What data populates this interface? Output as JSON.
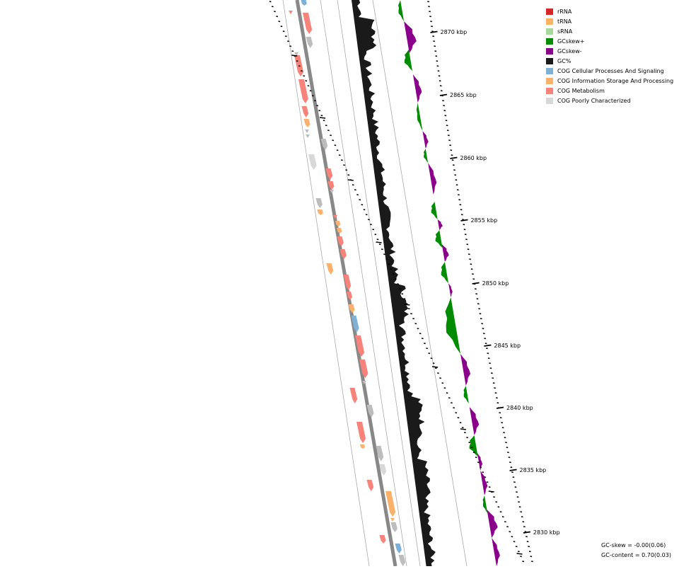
{
  "legend": [
    {
      "label": "rRNA",
      "color": "#d62728"
    },
    {
      "label": "tRNA",
      "color": "#fdb462"
    },
    {
      "label": "sRNA",
      "color": "#a6d99a"
    },
    {
      "label": "GCskew+",
      "color": "#008c00"
    },
    {
      "label": "GCskew-",
      "color": "#8b008b"
    },
    {
      "label": "GC%",
      "color": "#1a1a1a"
    },
    {
      "label": "COG Cellular Processes And Signaling",
      "color": "#7fb1d6"
    },
    {
      "label": "COG Information Storage And Processing",
      "color": "#fbb06b"
    },
    {
      "label": "COG Metabolism",
      "color": "#f8837a"
    },
    {
      "label": "COG Poorly Characterized",
      "color": "#d8d8d8"
    }
  ],
  "colors": {
    "backbone": "#888888",
    "ring_line": "#aaaaaa",
    "gc_content": "#1a1a1a",
    "gc_skew_pos": "#008c00",
    "gc_skew_neg": "#8b008b",
    "tick": "#000000",
    "unassigned_gene": "#bdbdbd"
  },
  "ticks": [
    "2870 kbp",
    "2865 kbp",
    "2860 kbp",
    "2855 kbp",
    "2850 kbp",
    "2845 kbp",
    "2840 kbp",
    "2835 kbp",
    "2830 kbp"
  ],
  "stats": {
    "gc_skew": "GC-skew = -0.00(0.06)",
    "gc_content": "GC-content = 0.70(0.03)"
  }
}
